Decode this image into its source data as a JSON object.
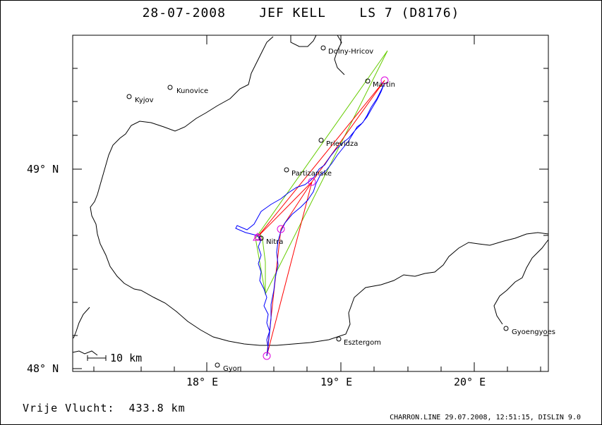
{
  "title": "28-07-2008    JEF KELL    LS 7 (D8176)",
  "footer_distance": "Vrije Vlucht:  433.8 km",
  "footer_credit": "CHARRON.LINE 29.07.2008, 12:51:15, DISLIN 9.0",
  "axes": {
    "x_ticks": [
      "18° E",
      "19° E",
      "20° E"
    ],
    "y_ticks": [
      "49° N",
      "48° N"
    ]
  },
  "scale_bar_label": "10 km",
  "places": [
    {
      "name": "Dolny-Hricov",
      "lon": 18.87,
      "lat": 49.6
    },
    {
      "name": "Martin",
      "lon": 19.2,
      "lat": 49.44
    },
    {
      "name": "Kunovice",
      "lon": 17.72,
      "lat": 49.42
    },
    {
      "name": "Kyjov",
      "lon": 17.42,
      "lat": 49.37
    },
    {
      "name": "Prievidza",
      "lon": 18.84,
      "lat": 49.14
    },
    {
      "name": "Partizanske",
      "lon": 18.53,
      "lat": 49.0
    },
    {
      "name": "Nitra",
      "lon": 18.36,
      "lat": 48.64
    },
    {
      "name": "Esztergom",
      "lon": 18.98,
      "lat": 48.14
    },
    {
      "name": "Gyoengyoes",
      "lon": 20.22,
      "lat": 48.19
    },
    {
      "name": "Gyor",
      "lon": 18.08,
      "lat": 48.01
    }
  ],
  "colors": {
    "track": "#0000ff",
    "task_line": "#ff0000",
    "sector": "#66cc00",
    "turnpoint": "#dd00dd",
    "border": "#000000"
  }
}
